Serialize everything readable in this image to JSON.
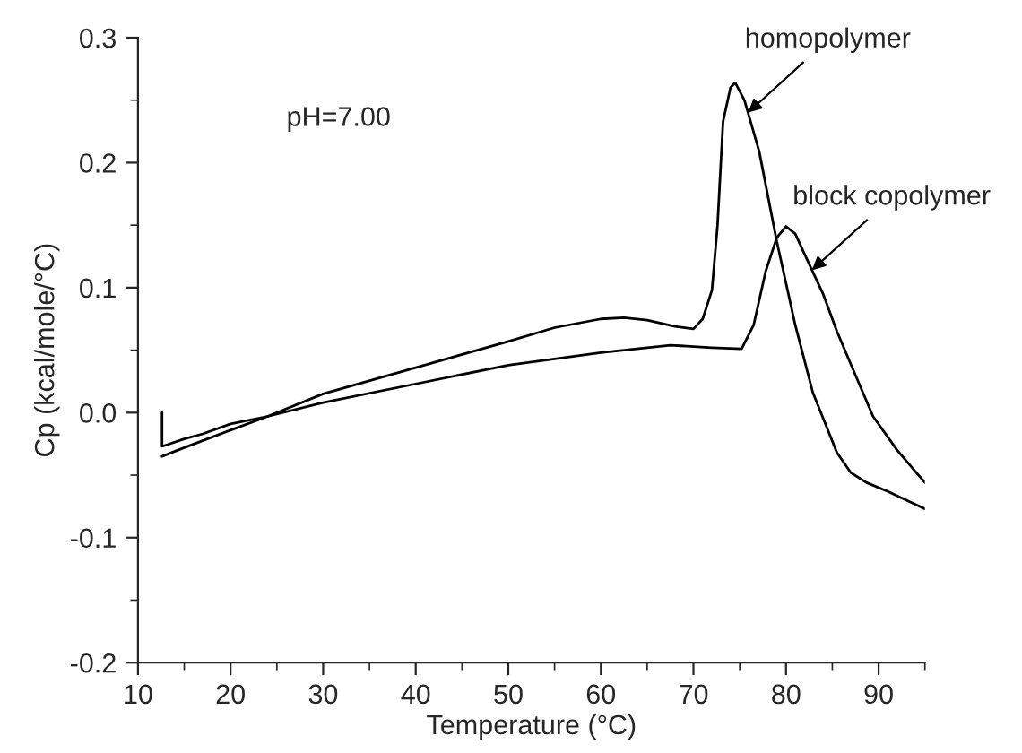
{
  "chart_data": {
    "type": "line",
    "xlabel": "Temperature (°C)",
    "ylabel": "Cp (kcal/mole/°C)",
    "xlim": [
      10,
      95
    ],
    "xticks": [
      10,
      20,
      30,
      40,
      50,
      60,
      70,
      80,
      90
    ],
    "ylim": [
      -0.2,
      0.3
    ],
    "yticks": [
      {
        "value": -0.2,
        "label": "-0.2"
      },
      {
        "value": -0.1,
        "label": "-0.1"
      },
      {
        "value": 0,
        "label": "0.0"
      },
      {
        "value": 0.1,
        "label": "0.1"
      },
      {
        "value": 0.2,
        "label": "0.2"
      },
      {
        "value": 0.3,
        "label": "0.3"
      }
    ],
    "grid": false,
    "legend": false,
    "marker": "none",
    "line_style": "solid",
    "series": [
      {
        "color": "#000000",
        "x": [
          12.6,
          15,
          20,
          24,
          30,
          40,
          50,
          55,
          60,
          62.5,
          65,
          68,
          70,
          71,
          72,
          72.6,
          73.2,
          74,
          74.5,
          75.5,
          77.1,
          79,
          81,
          82.9,
          85.5,
          87,
          88.7,
          91,
          93,
          95
        ],
        "values": [
          -0.035,
          -0.028,
          -0.014,
          -0.003,
          0.015,
          0.036,
          0.057,
          0.068,
          0.075,
          0.076,
          0.074,
          0.069,
          0.067,
          0.075,
          0.098,
          0.15,
          0.233,
          0.26,
          0.264,
          0.25,
          0.209,
          0.137,
          0.07,
          0.016,
          -0.032,
          -0.048,
          -0.056,
          -0.063,
          -0.07,
          -0.077
        ]
      },
      {
        "color": "#000000",
        "x": [
          12.6,
          12.6,
          15,
          17,
          20,
          24,
          30,
          40,
          50,
          55,
          60,
          67.5,
          72,
          75.2,
          76.5,
          77.8,
          79,
          80,
          81,
          82.3,
          84,
          85.5,
          87.5,
          89.4,
          92,
          95
        ],
        "values": [
          0,
          -0.027,
          -0.021,
          -0.017,
          -0.009,
          -0.003,
          0.008,
          0.023,
          0.038,
          0.043,
          0.048,
          0.054,
          0.052,
          0.051,
          0.07,
          0.113,
          0.14,
          0.149,
          0.143,
          0.122,
          0.095,
          0.065,
          0.03,
          -0.003,
          -0.03,
          -0.056
        ]
      }
    ],
    "annotations": [
      "pH=7.00",
      {
        "text": "homopolymer",
        "x": 75.9,
        "y": 0.24
      },
      {
        "text": "block copolymer",
        "x": 82.8,
        "y": 0.114
      }
    ]
  }
}
